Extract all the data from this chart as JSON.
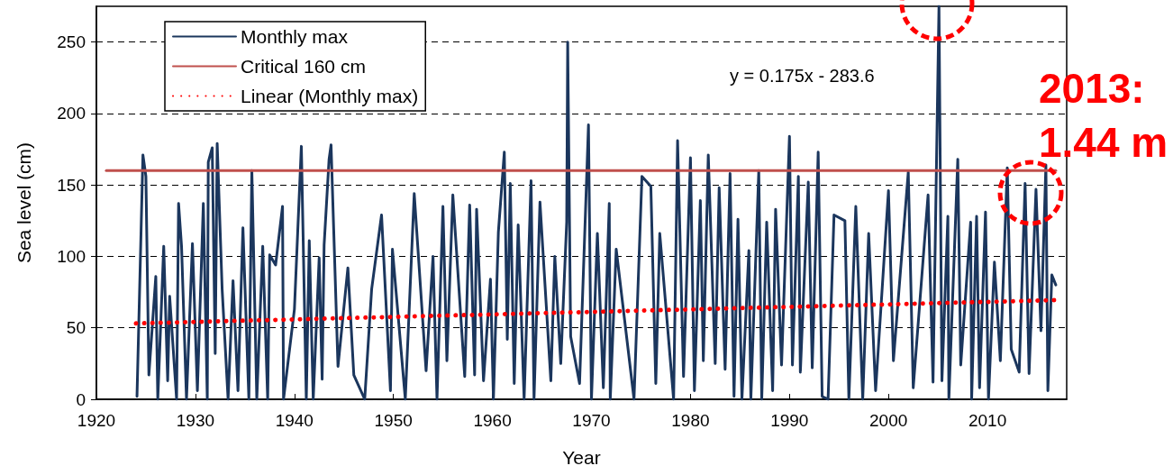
{
  "chart_data": {
    "type": "line",
    "xlabel": "Year",
    "ylabel": "Sea level (cm)",
    "xlim": [
      1920,
      2018
    ],
    "xticks": [
      1920,
      1930,
      1940,
      1950,
      1960,
      1970,
      1980,
      1990,
      2000,
      2010
    ],
    "ylim": [
      0,
      275
    ],
    "yticks": [
      0,
      50,
      100,
      150,
      200,
      250
    ],
    "grid": "y",
    "legend": "top left",
    "marker": "none",
    "annotations": [
      "y = 0.175x - 283.6",
      "2013: 1.44 m"
    ],
    "series": [
      {
        "name": "Monthly max",
        "color": "#1b365d",
        "line_style": "solid",
        "x": [
          1924.1,
          1924.7,
          1925.0,
          1925.3,
          1926.0,
          1926.2,
          1926.8,
          1927.2,
          1927.4,
          1928.1,
          1928.3,
          1928.6,
          1929.1,
          1929.7,
          1930.2,
          1930.8,
          1931.2,
          1931.3,
          1931.7,
          1932.0,
          1932.2,
          1932.7,
          1933.3,
          1933.8,
          1934.3,
          1934.8,
          1935.4,
          1935.7,
          1936.2,
          1936.8,
          1937.3,
          1937.5,
          1938.1,
          1938.8,
          1938.9,
          1940.0,
          1940.7,
          1941.2,
          1941.5,
          1941.9,
          1942.5,
          1942.8,
          1943.0,
          1943.5,
          1943.7,
          1944.4,
          1945.4,
          1946.0,
          1947.1,
          1947.8,
          1948.8,
          1949.7,
          1949.9,
          1951.2,
          1952.1,
          1953.3,
          1954.0,
          1954.4,
          1955.0,
          1955.4,
          1956.0,
          1957.2,
          1957.7,
          1958.2,
          1958.4,
          1959.1,
          1959.8,
          1960.1,
          1960.6,
          1961.2,
          1961.5,
          1961.8,
          1962.2,
          1962.6,
          1963.2,
          1963.9,
          1964.2,
          1964.8,
          1965.9,
          1966.3,
          1966.9,
          1967.5,
          1967.6,
          1967.9,
          1968.8,
          1969.7,
          1970.0,
          1970.6,
          1971.2,
          1971.8,
          1971.9,
          1972.5,
          1974.3,
          1975.1,
          1976.0,
          1976.5,
          1976.9,
          1978.3,
          1978.7,
          1979.3,
          1980.0,
          1980.4,
          1981.0,
          1981.3,
          1981.8,
          1982.5,
          1982.9,
          1983.5,
          1984.0,
          1984.4,
          1984.8,
          1985.2,
          1985.9,
          1986.1,
          1986.9,
          1987.2,
          1987.7,
          1988.3,
          1988.6,
          1989.2,
          1990.0,
          1990.3,
          1990.9,
          1991.1,
          1991.9,
          1992.3,
          1992.9,
          1993.3,
          1993.9,
          1994.5,
          1995.6,
          1996.0,
          1996.7,
          1997.4,
          1998.0,
          1998.7,
          2000.0,
          2000.5,
          2002.0,
          2002.5,
          2004.0,
          2004.5,
          2005.1,
          2005.4,
          2006.0,
          2006.1,
          2007.0,
          2007.3,
          2008.3,
          2008.4,
          2008.9,
          2009.2,
          2009.8,
          2010.1,
          2010.7,
          2011.3,
          2012.0,
          2012.4,
          2013.2,
          2013.8,
          2014.2,
          2014.9,
          2015.4,
          2015.9,
          2016.1,
          2016.5,
          2016.9
        ],
        "values": [
          2,
          171,
          156,
          17,
          86,
          0,
          107,
          13,
          72,
          0,
          137,
          107,
          0,
          109,
          6,
          137,
          0,
          166,
          176,
          32,
          179,
          77,
          0,
          83,
          6,
          120,
          0,
          160,
          0,
          107,
          0,
          101,
          94,
          135,
          0,
          63,
          177,
          0,
          111,
          0,
          99,
          14,
          108,
          168,
          178,
          23,
          92,
          17,
          0,
          77,
          129,
          6,
          105,
          0,
          144,
          20,
          100,
          0,
          135,
          27,
          143,
          16,
          136,
          17,
          133,
          13,
          84,
          0,
          117,
          173,
          42,
          151,
          11,
          122,
          0,
          153,
          0,
          138,
          13,
          100,
          25,
          124,
          250,
          44,
          11,
          192,
          0,
          116,
          8,
          137,
          0,
          105,
          0,
          156,
          149,
          11,
          116,
          0,
          181,
          16,
          169,
          6,
          139,
          27,
          171,
          25,
          148,
          21,
          158,
          2,
          126,
          0,
          104,
          0,
          160,
          0,
          124,
          6,
          133,
          24,
          184,
          24,
          156,
          19,
          152,
          22,
          173,
          2,
          0,
          129,
          125,
          0,
          135,
          0,
          116,
          6,
          146,
          27,
          159,
          8,
          143,
          12,
          275,
          13,
          128,
          0,
          168,
          24,
          124,
          0,
          128,
          8,
          131,
          0,
          96,
          27,
          162,
          35,
          19,
          151,
          18,
          147,
          48,
          164,
          6,
          87,
          80
        ]
      },
      {
        "name": "Critical 160 cm",
        "color": "#c0504d",
        "line_style": "solid",
        "x": [
          1921,
          2016.9
        ],
        "values": [
          160,
          160
        ]
      },
      {
        "name": "Linear (Monthly max)",
        "color": "#ff0000",
        "line_style": "dotted",
        "x": [
          1924,
          2017
        ],
        "values": [
          53.1,
          69.4
        ]
      }
    ]
  }
}
